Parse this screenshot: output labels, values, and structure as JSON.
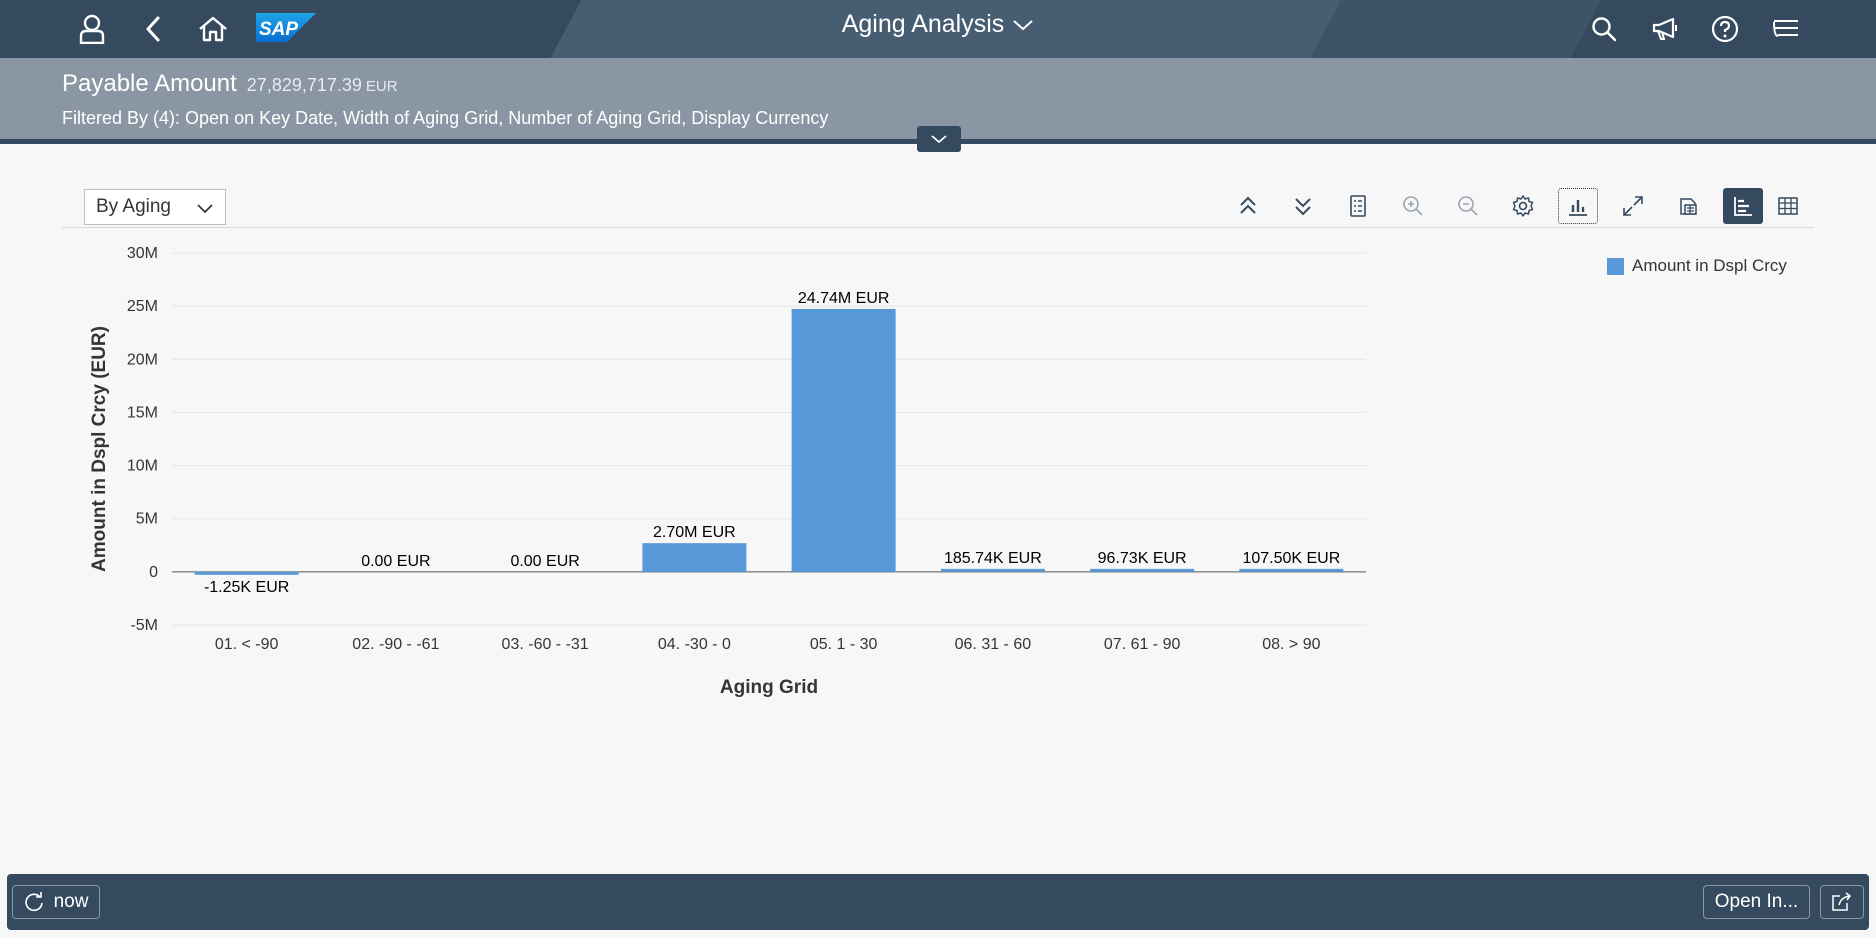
{
  "shell": {
    "title": "Aging Analysis",
    "logo_text": "SAP",
    "icons": [
      "user-icon",
      "back-icon",
      "home-icon",
      "search-icon",
      "megaphone-icon",
      "help-icon",
      "notifications-icon"
    ]
  },
  "header": {
    "kpi_title": "Payable Amount",
    "kpi_value": "27,829,717.39",
    "kpi_unit": "EUR",
    "filter_text": "Filtered By (4): Open on Key Date, Width of Aging Grid, Number of Aging Grid, Display Currency"
  },
  "toolbar": {
    "view_select": "By Aging",
    "icons": [
      "collapse-all-icon",
      "expand-all-icon",
      "details-icon",
      "zoom-in-icon",
      "zoom-out-icon",
      "settings-icon",
      "chart-type-icon",
      "fullscreen-icon",
      "download-icon",
      "chart-view-icon",
      "table-view-icon"
    ]
  },
  "chart_data": {
    "type": "bar",
    "categories": [
      "01. < -90",
      "02. -90 - -61",
      "03. -60 - -31",
      "04. -30 - 0",
      "05. 1 - 30",
      "06. 31 - 60",
      "07. 61 - 90",
      "08. > 90"
    ],
    "values": [
      -1250,
      0,
      0,
      2700000,
      24740000,
      185740,
      96730,
      107500
    ],
    "data_labels": [
      "-1.25K EUR",
      "0.00 EUR",
      "0.00 EUR",
      "2.70M EUR",
      "24.74M EUR",
      "185.74K EUR",
      "96.73K EUR",
      "107.50K EUR"
    ],
    "xlabel": "Aging Grid",
    "ylabel": "Amount in Dspl Crcy (EUR)",
    "ylim": [
      -5000000,
      30000000
    ],
    "yticks": [
      -5000000,
      0,
      5000000,
      10000000,
      15000000,
      20000000,
      25000000,
      30000000
    ],
    "ytick_labels": [
      "-5M",
      "0",
      "5M",
      "10M",
      "15M",
      "20M",
      "25M",
      "30M"
    ],
    "series": [
      {
        "name": "Amount in Dspl Crcy",
        "values": [
          -1250,
          0,
          0,
          2700000,
          24740000,
          185740,
          96730,
          107500
        ]
      }
    ],
    "legend": "top-right",
    "grid": true,
    "color": "#5899da"
  },
  "footer": {
    "refresh_label": "now",
    "open_in_label": "Open In..."
  },
  "colors": {
    "shell": "#354a5f",
    "header": "#8a96a3",
    "bar": "#5899da",
    "background": "#f7f7f7"
  }
}
